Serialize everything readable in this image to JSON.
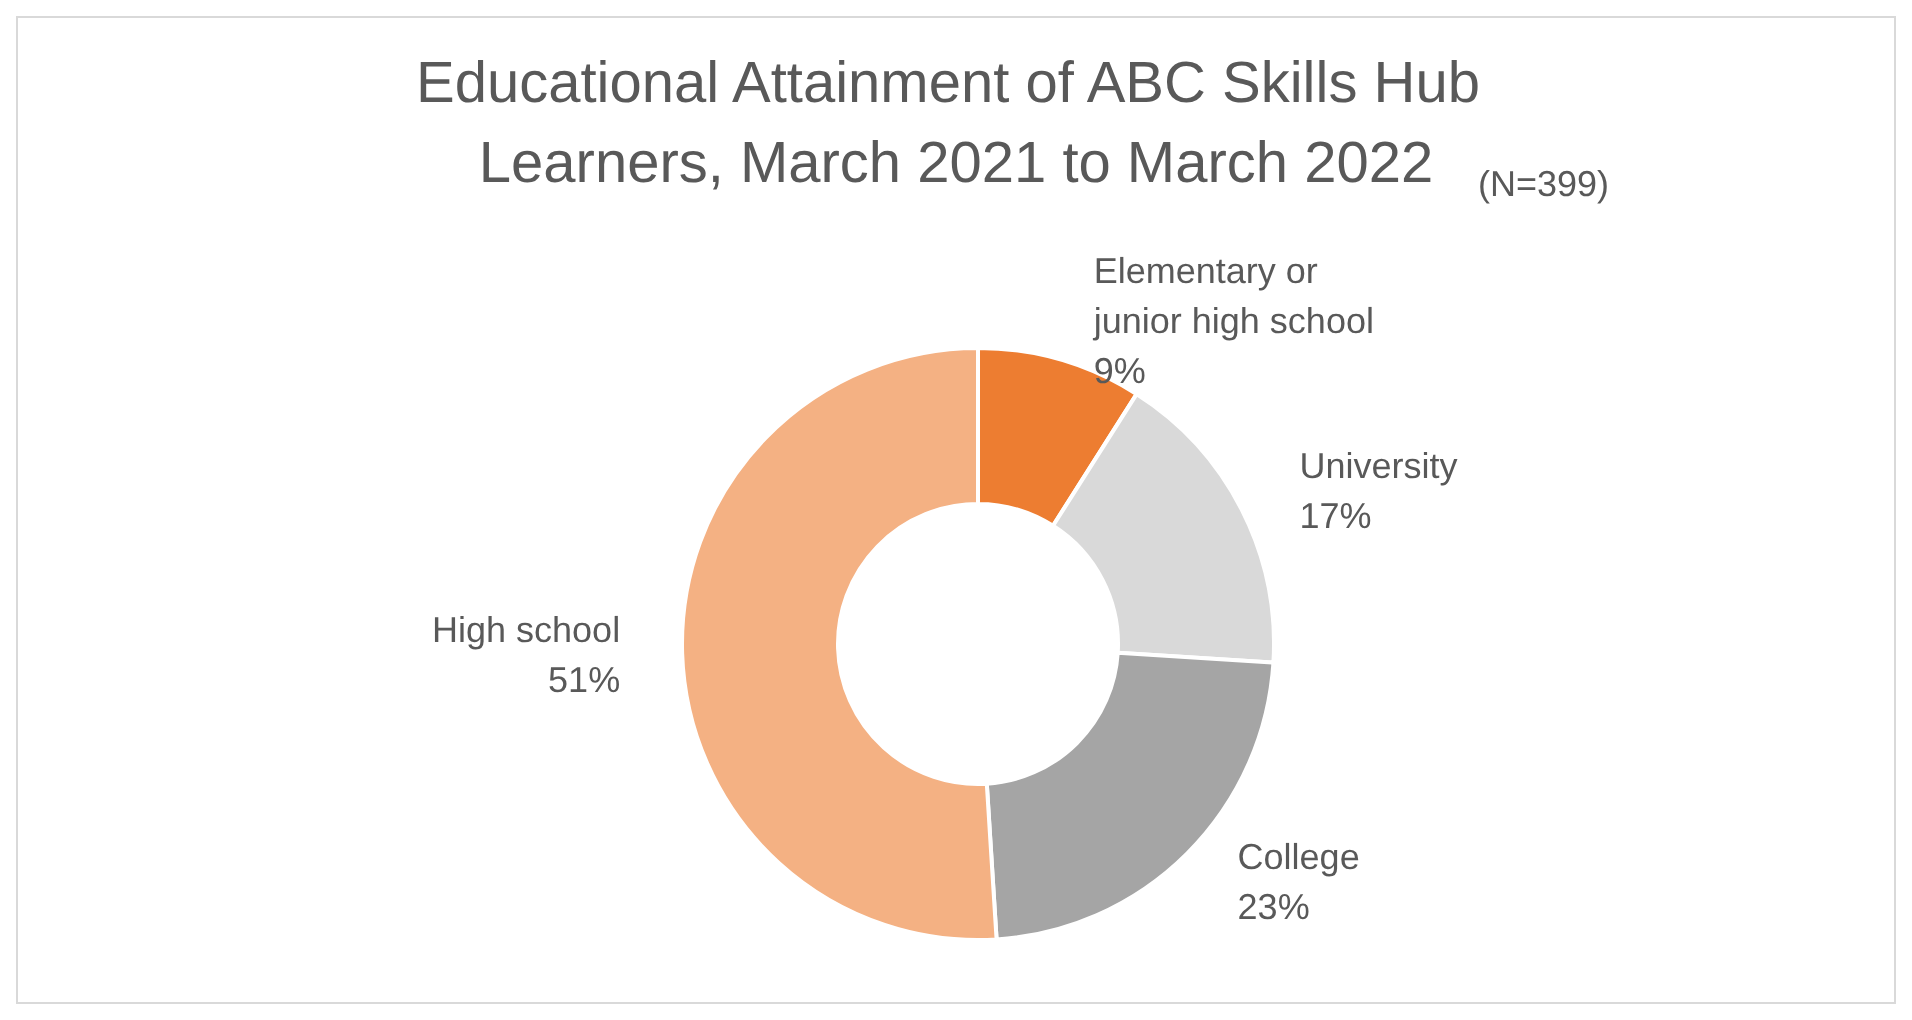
{
  "chart_data": {
    "type": "donut",
    "title": "Educational Attainment of ABC Skills Hub Learners, March 2021 to March 2022",
    "subtitle": "(N=399)",
    "categories": [
      "Elementary or junior high school",
      "University",
      "College",
      "High school"
    ],
    "values": [
      9,
      17,
      23,
      51
    ],
    "colors": [
      "#ed7d31",
      "#d9d9d9",
      "#a5a5a5",
      "#f4b183"
    ],
    "value_labels": [
      "9%",
      "17%",
      "23%",
      "51%"
    ],
    "legend": false
  }
}
